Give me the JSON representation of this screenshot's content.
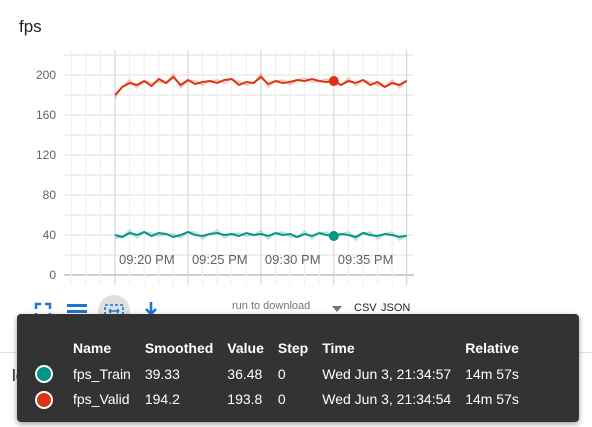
{
  "card": {
    "title": "fps"
  },
  "chart_data": {
    "type": "line",
    "yticks": [
      "0",
      "40",
      "80",
      "120",
      "160",
      "200"
    ],
    "xticks": [
      "09:20 PM",
      "09:25 PM",
      "09:30 PM",
      "09:35 PM"
    ],
    "ylim": [
      -10,
      225
    ],
    "x_range_minutes": [
      -3.5,
      20.5
    ],
    "grid": true,
    "series": [
      {
        "name": "fps_Train",
        "color": "#009688",
        "x": [
          0,
          0.5,
          1,
          1.5,
          2,
          2.5,
          3,
          3.5,
          4,
          4.5,
          5,
          5.5,
          6,
          6.5,
          7,
          7.5,
          8,
          8.5,
          9,
          9.5,
          10,
          10.5,
          11,
          11.5,
          12,
          12.5,
          13,
          13.5,
          14,
          14.5,
          15,
          15.5,
          16,
          16.5,
          17,
          17.5,
          18,
          18.5,
          19,
          19.5,
          20
        ],
        "values": [
          40,
          38,
          42,
          40,
          43,
          39,
          42,
          41,
          38,
          40,
          43,
          40,
          39,
          41,
          42,
          40,
          41,
          39,
          42,
          40,
          41,
          39,
          42,
          40,
          41,
          38,
          41,
          39,
          42,
          40,
          39,
          41,
          40,
          38,
          42,
          40,
          39,
          41,
          40,
          38,
          39.3
        ]
      },
      {
        "name": "fps_Valid",
        "color": "#dd3311",
        "x": [
          0,
          0.5,
          1,
          1.5,
          2,
          2.5,
          3,
          3.5,
          4,
          4.5,
          5,
          5.5,
          6,
          6.5,
          7,
          7.5,
          8,
          8.5,
          9,
          9.5,
          10,
          10.5,
          11,
          11.5,
          12,
          12.5,
          13,
          13.5,
          14,
          14.5,
          15,
          15.5,
          16,
          16.5,
          17,
          17.5,
          18,
          18.5,
          19,
          19.5,
          20
        ],
        "values": [
          180,
          188,
          192,
          190,
          194,
          189,
          196,
          192,
          198,
          190,
          195,
          191,
          193,
          194,
          192,
          195,
          196,
          190,
          193,
          192,
          198,
          191,
          194,
          192,
          193,
          195,
          194,
          196,
          194,
          193,
          194,
          190,
          194,
          192,
          195,
          190,
          193,
          188,
          192,
          190,
          194.2
        ]
      }
    ],
    "hover_x": 15.0
  },
  "toolbar": {
    "expand_icon": "fullscreen-icon",
    "legend_icon": "list-icon",
    "fit_icon": "fit-domain-icon",
    "download_icon": "download-icon",
    "download_placeholder": "run to download",
    "csv_label": "CSV",
    "json_label": "JSON"
  },
  "next_card": {
    "title_partial": "loss"
  },
  "tooltip": {
    "headers": [
      "Name",
      "Smoothed",
      "Value",
      "Step",
      "Time",
      "Relative"
    ],
    "rows": [
      {
        "color": "#009688",
        "name": "fps_Train",
        "smoothed": "39.33",
        "value": "36.48",
        "step": "0",
        "time": "Wed Jun 3, 21:34:57",
        "relative": "14m 57s"
      },
      {
        "color": "#dd3311",
        "name": "fps_Valid",
        "smoothed": "194.2",
        "value": "193.8",
        "step": "0",
        "time": "Wed Jun 3, 21:34:54",
        "relative": "14m 57s"
      }
    ]
  }
}
